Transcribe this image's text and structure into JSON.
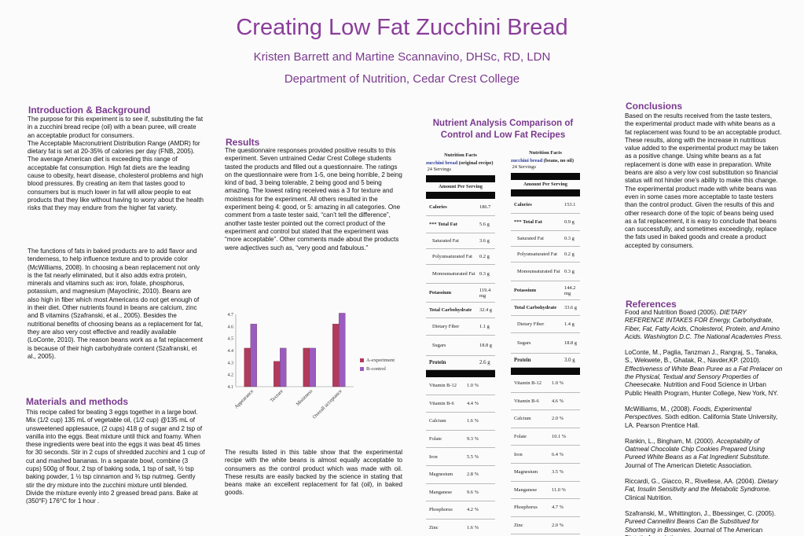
{
  "header": {
    "title": "Creating Low Fat Zucchini Bread",
    "authors": "Kristen Barrett and Martine Scannavino, DHSc, RD, LDN",
    "department": "Department of Nutrition, Cedar Crest College"
  },
  "intro": {
    "heading": "Introduction & Background",
    "p1": "The purpose for this experiment is to see if, substituting the fat in a zucchini bread recipe (oil) with a bean puree, will create an acceptable product for consumers.\nThe Acceptable Macronutrient Distribution Range (AMDR) for dietary fat is set at 20-35% of calories per day (FNB, 2005). The average American diet is exceeding this range of acceptable fat consumption.  High fat diets are the leading cause to obesity, heart disease, cholesterol problems and high blood pressures.  By creating an item that tastes good to consumers but is much lower in fat will allow people to eat products that they like without having to worry about the health risks that they may endure from the higher fat variety.",
    "p2": "The functions of fats in baked products are to add flavor and tenderness, to help influence texture and to provide color (McWilliams, 2008). In choosing a bean replacement not only is the fat nearly eliminated, but it also adds extra protein, minerals and vitamins such as: iron, folate, phosphorus, potassium, and magnesium (Mayoclinic, 2010).  Beans are also high in fiber which most Americans do not get enough of in their diet.  Other nutrients found in beans are calcium, zinc and B vitamins (Szafranski, et al., 2005).  Besides the nutritional benefits of choosing beans as a replacement for fat, they are also very cost effective and readily available (LoConte, 2010). The reason beans work as a fat replacement is because of their high carbohydrate content (Szafranski, et al., 2005)."
  },
  "materials": {
    "heading": "Materials and methods",
    "text": "This recipe called for beating 3 eggs together in a large bowl.  Mix (1/2 cup) 135 mL of vegetable oil, (1/2 cup) @135 mL of unsweetened applesauce, (2 cups) 418 g of sugar and 2 tsp of vanilla into the eggs.  Beat mixture until thick and foamy.  When these ingredients were beat into the eggs it was beat 45 times for 30 seconds.  Stir in 2 cups of shredded zucchini and 1 cup of cut and mashed bananas.  In a separate bowl, combine (3 cups) 500g of flour, 2 tsp of baking soda, 1 tsp of salt, ½ tsp baking powder, 1 ½ tsp cinnamon and ¾ tsp nutmeg.  Gently stir the dry mixture into the zucchini mixture until blended.  Divide the mixture evenly into 2 greased bread pans.  Bake at (350°F) 176°C for 1 hour ."
  },
  "results": {
    "heading": "Results",
    "text": "The questionnaire responses provided positive results to this experiment.  Seven untrained Cedar Crest College students tasted the products and filled out a questionnaire.  The ratings on the questionnaire were from 1-5, one being horrible, 2 being kind of bad, 3 being tolerable, 2 being good and 5 being amazing. The lowest rating received was a 3 for texture and moistness for the experiment.  All others resulted in the experiment being 4: good, or 5: amazing in all categories.  One comment from a taste tester said, “can’t tell the difference”, another taste tester pointed out the correct product of the experiment and control but stated that the experiment was “more acceptable”. Other comments made about the products were adjectives such as, “very good and fabulous.”",
    "table_text": "The results listed in this table show that the experimental recipe with the white beans is almost equally acceptable to consumers as the control product which was made with oil.  These results are easily backed by the science in stating that beans make an excellent replacement for fat (oil), in baked goods."
  },
  "chart_data": {
    "type": "bar",
    "categories": [
      "Appearance",
      "Texture",
      "Moistness",
      "Overall acceptance"
    ],
    "series": [
      {
        "name": "A-experiment",
        "values": [
          4.42,
          4.31,
          4.42,
          4.62
        ],
        "color": "#b23a5b"
      },
      {
        "name": "B-control",
        "values": [
          4.62,
          4.42,
          4.42,
          4.71
        ],
        "color": "#9a5cc0"
      }
    ],
    "ylim": [
      4.1,
      4.7
    ],
    "yticks": [
      "4.1",
      "4.2",
      "4.3",
      "4.4",
      "4.5",
      "4.6",
      "4.7"
    ],
    "legend": "right"
  },
  "nutrient": {
    "heading": "Nutrient Analysis Comparison of Control and Low Fat Recipes",
    "left": {
      "header": "Nutrition Facts",
      "name": "zucchini bread",
      "note": "(original recipe)",
      "servings": "24 Servings",
      "amount_label": "Amount Per Serving",
      "rows": [
        {
          "label": "Calories",
          "value": "186.7",
          "bold": true
        },
        {
          "label": "*** Total Fat",
          "value": "5.6 g",
          "bold": true
        },
        {
          "label": "Saturated Fat",
          "value": "3.6 g",
          "bold": false
        },
        {
          "label": "Polyunsaturated Fat",
          "value": "0.2 g",
          "bold": false
        },
        {
          "label": "Monounsaturated Fat",
          "value": "0.3 g",
          "bold": false
        },
        {
          "label": "Potassium",
          "value": "119.4 mg",
          "bold": true
        },
        {
          "label": "Total Carbohydrate",
          "value": "32.4 g",
          "bold": true
        },
        {
          "label": "Dietary Fiber",
          "value": "1.1 g",
          "bold": false
        },
        {
          "label": "Sugars",
          "value": "18.8 g",
          "bold": false
        },
        {
          "label": "Protein",
          "value": "2.6 g",
          "bold": true
        }
      ],
      "vitamins": [
        {
          "label": "Vitamin B-12",
          "value": "1.0 %"
        },
        {
          "label": "Vitamin B-6",
          "value": "4.4 %"
        },
        {
          "label": "Calcium",
          "value": "1.6 %"
        },
        {
          "label": "Folate",
          "value": "9.3 %"
        },
        {
          "label": "Iron",
          "value": "5.5 %"
        },
        {
          "label": "Magnesium",
          "value": "2.8 %"
        },
        {
          "label": "Manganese",
          "value": "9.6 %"
        },
        {
          "label": "Phosphorus",
          "value": "4.2 %"
        },
        {
          "label": "Zinc",
          "value": "1.6 %"
        }
      ]
    },
    "right": {
      "header": "Nutrition Facts",
      "name": "zucchini bread",
      "note": "(beans, no oil)",
      "servings": "24 Servings",
      "amount_label": "Amount Per Serving",
      "rows": [
        {
          "label": "Calories",
          "value": "153.1",
          "bold": true
        },
        {
          "label": "*** Total Fat",
          "value": "0.9 g",
          "bold": true
        },
        {
          "label": "Saturated Fat",
          "value": "0.3 g",
          "bold": false
        },
        {
          "label": "Polyunsaturated Fat",
          "value": "0.2 g",
          "bold": false
        },
        {
          "label": "Monounsaturated Fat",
          "value": "0.3 g",
          "bold": false
        },
        {
          "label": "Potassium",
          "value": "144.2 mg",
          "bold": true
        },
        {
          "label": "Total Carbohydrate",
          "value": "33.6 g",
          "bold": true
        },
        {
          "label": "Dietary Fiber",
          "value": "1.4 g",
          "bold": false
        },
        {
          "label": "Sugars",
          "value": "18.8 g",
          "bold": false
        },
        {
          "label": "Protein",
          "value": "3.0 g",
          "bold": true
        }
      ],
      "vitamins": [
        {
          "label": "Vitamin B-12",
          "value": "1.0 %"
        },
        {
          "label": "Vitamin B-6",
          "value": "4.6 %"
        },
        {
          "label": "Calcium",
          "value": "2.0 %"
        },
        {
          "label": "Folate",
          "value": "10.1 %"
        },
        {
          "label": "Iron",
          "value": "6.4 %"
        },
        {
          "label": "Magnesium",
          "value": "3.5 %"
        },
        {
          "label": "Manganese",
          "value": "11.0 %"
        },
        {
          "label": "Phosphorus",
          "value": "4.7 %"
        },
        {
          "label": "Zinc",
          "value": "2.0 %"
        }
      ]
    }
  },
  "conclusions": {
    "heading": "Conclusions",
    "text": "Based on the results received from the taste testers, the experimental product made with white beans as a fat replacement was found to be an acceptable product.  These results, along with the increase in nutritious value added to the experimental product may be taken as a positive change.  Using white beans as a fat replacement is done with ease in preparation.  White beans are also a very low cost substitution so financial status will not hinder one’s ability to make this change.  The experimental product made with white beans was even in some cases more acceptable to taste testers than the control product.   Given the results of this and other research done of the topic of beans being used as a fat replacement, it is easy to conclude that beans can successfully, and sometimes exceedingly, replace the fats used in baked goods and create a product accepted by consumers."
  },
  "references": {
    "heading": "References",
    "items": [
      {
        "plain": "Food and Nutrition Board (2005). ",
        "italic": "DIETARY REFERENCE INTAKES FOR Energy, Carbohydrate, Fiber, Fat, Fatty Acids, Cholesterol, Protein, and Amino Acids. Washington D.C. The National Academies Press.",
        "tail": ""
      },
      {
        "plain": "LoConte, M., Paglia, Tanzman J.,  Rangraj, S., Tanaka, S., Wekwete, B., Ghatak, R., Navder,KP. (2010). ",
        "italic": "Effectiveness of White Bean Puree as a Fat Prelacer on the Physical, Textual and Sensory Properties of Cheesecake.",
        "tail": " Nutrition and Food Science in Urban Public Health Program, Hunter College, New York, NY."
      },
      {
        "plain": "McWilliams, M., (2008).  ",
        "italic": "Foods, Experimental Perspectives.",
        "tail": "  Sixth edition. California State University, LA. Pearson Prentice Hall."
      },
      {
        "plain": " Rankin, L., Bingham, M. (2000). ",
        "italic": "Acceptability of Oatmeal Chocolate Chip Cookies Prepared Using Pureed White Beans as a Fat Ingredient Substitute.",
        "tail": "  Journal of The American Dietetic Association."
      },
      {
        "plain": "Riccardi, G., Giacco, R., Rivellese, AA. (2004). ",
        "italic": "Dietary Fat, Insulin Sensitivity and the Metabolic Syndrome.",
        "tail": " Clinical Nutrition."
      },
      {
        "plain": "Szafranski, M., Whittington, J., Bbessinger, C. (2005). ",
        "italic": "Pureed Cannellini Beans Can Be Substitued for Shortening in Brownies.",
        "tail": "  Journal of The American Dietetic Association."
      }
    ]
  }
}
